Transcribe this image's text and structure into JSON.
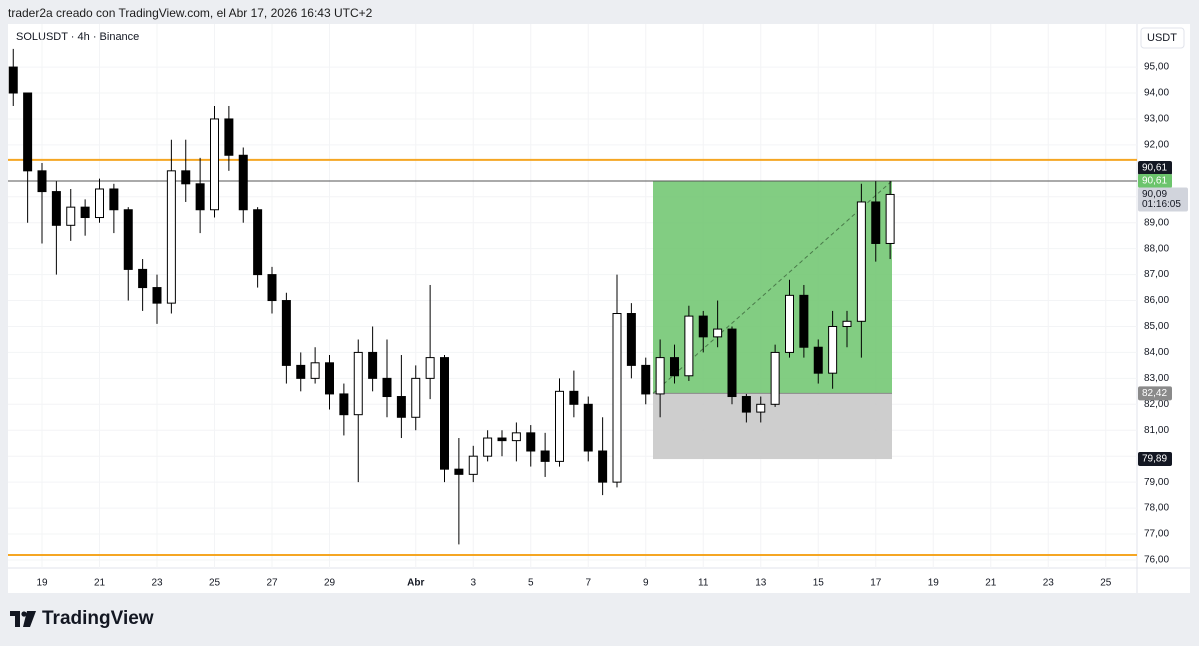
{
  "header": {
    "text": "trader2a creado con TradingView.com, el Abr 17, 2026 16:43 UTC+2"
  },
  "footer": {
    "brand": "TradingView"
  },
  "chart_data": {
    "type": "candlestick",
    "title": "SOLUSDT · 4h · Binance",
    "currency": "USDT",
    "up_color": "#ffffff",
    "down_color": "#000000",
    "outline_color": "#000000",
    "grid": true,
    "categories": [
      null,
      null,
      "19",
      null,
      null,
      null,
      "21",
      null,
      null,
      null,
      "23",
      null,
      null,
      null,
      "25",
      null,
      null,
      null,
      "27",
      null,
      null,
      null,
      "29",
      null,
      null,
      null,
      null,
      null,
      "Abr",
      null,
      null,
      null,
      "3",
      null,
      null,
      null,
      "5",
      null,
      null,
      null,
      "7",
      null,
      null,
      null,
      "9",
      null,
      null,
      null,
      "11",
      null,
      null,
      null,
      "13",
      null,
      null,
      null,
      "15",
      null,
      null,
      null,
      "17",
      null,
      null,
      null,
      "19",
      null,
      null,
      null,
      "21",
      null,
      null,
      null,
      "23",
      null,
      null,
      null,
      "25",
      null,
      null
    ],
    "open": [
      95.0,
      94.0,
      91.0,
      90.2,
      88.9,
      89.6,
      89.2,
      90.3,
      89.5,
      87.2,
      86.5,
      85.9,
      91.0,
      90.5,
      89.5,
      93.0,
      91.6,
      89.5,
      87.0,
      86.0,
      83.5,
      83.0,
      83.6,
      82.4,
      81.6,
      84.0,
      83.0,
      82.3,
      81.5,
      83.0,
      83.8,
      79.5,
      79.3,
      80.0,
      80.7,
      80.6,
      80.9,
      80.2,
      79.8,
      82.5,
      82.0,
      80.2,
      79.0,
      85.5,
      83.5,
      82.4,
      83.8,
      83.1,
      85.4,
      84.6,
      84.9,
      82.3,
      81.7,
      82.0,
      84.0,
      86.2,
      84.2,
      83.2,
      85.0,
      85.2,
      89.8,
      88.2,
      null,
      null,
      null,
      null,
      null,
      null,
      null,
      null,
      null,
      null,
      null,
      null,
      null,
      null,
      null,
      null,
      null
    ],
    "high": [
      95.7,
      94.0,
      91.3,
      90.6,
      90.3,
      89.9,
      90.7,
      90.5,
      89.6,
      87.6,
      87.0,
      92.2,
      92.2,
      91.5,
      93.5,
      93.5,
      91.9,
      89.6,
      87.3,
      86.3,
      84.0,
      84.2,
      83.9,
      82.8,
      84.5,
      85.0,
      84.5,
      83.9,
      83.5,
      86.6,
      83.9,
      80.7,
      80.4,
      81.0,
      81.0,
      81.3,
      81.2,
      80.9,
      83.0,
      83.3,
      82.3,
      81.5,
      87.0,
      85.9,
      83.8,
      84.5,
      84.3,
      85.8,
      85.6,
      86.0,
      85.0,
      82.4,
      82.3,
      84.3,
      86.8,
      86.6,
      84.5,
      85.6,
      85.6,
      90.5,
      90.6,
      90.61,
      null,
      null,
      null,
      null,
      null,
      null,
      null,
      null,
      null,
      null,
      null,
      null,
      null,
      null,
      null,
      null,
      null
    ],
    "low": [
      93.5,
      89.0,
      88.2,
      87.0,
      88.3,
      88.5,
      89.0,
      88.6,
      86.0,
      85.6,
      85.1,
      85.5,
      89.8,
      88.6,
      89.2,
      91.0,
      89.0,
      86.5,
      85.5,
      82.8,
      82.5,
      82.8,
      81.8,
      80.8,
      79.0,
      82.5,
      81.5,
      80.7,
      81.0,
      82.2,
      79.0,
      76.6,
      79.0,
      79.8,
      80.0,
      79.8,
      79.6,
      79.2,
      79.6,
      81.5,
      79.8,
      78.5,
      78.8,
      83.0,
      82.0,
      81.5,
      82.8,
      82.9,
      84.0,
      84.2,
      82.0,
      81.3,
      81.3,
      81.9,
      83.8,
      83.8,
      82.8,
      82.6,
      84.2,
      83.8,
      87.5,
      87.6,
      null,
      null,
      null,
      null,
      null,
      null,
      null,
      null,
      null,
      null,
      null,
      null,
      null,
      null,
      null,
      null,
      null
    ],
    "close": [
      94.0,
      91.0,
      90.2,
      88.9,
      89.6,
      89.2,
      90.3,
      89.5,
      87.2,
      86.5,
      85.9,
      91.0,
      90.5,
      89.5,
      93.0,
      91.6,
      89.5,
      87.0,
      86.0,
      83.5,
      83.0,
      83.6,
      82.4,
      81.6,
      84.0,
      83.0,
      82.3,
      81.5,
      83.0,
      83.8,
      79.5,
      79.3,
      80.0,
      80.7,
      80.6,
      80.9,
      80.2,
      79.8,
      82.5,
      82.0,
      80.2,
      79.0,
      85.5,
      83.5,
      82.4,
      83.8,
      83.1,
      85.4,
      84.6,
      84.9,
      82.3,
      81.7,
      82.0,
      84.0,
      86.2,
      84.2,
      83.2,
      85.0,
      85.2,
      89.8,
      88.2,
      90.09,
      null,
      null,
      null,
      null,
      null,
      null,
      null,
      null,
      null,
      null,
      null,
      null,
      null,
      null,
      null,
      null,
      null
    ],
    "ylim": [
      75.69,
      96.66
    ],
    "yticks": [
      {
        "value": 76,
        "label": "76,00"
      },
      {
        "value": 77,
        "label": "77,00"
      },
      {
        "value": 78,
        "label": "78,00"
      },
      {
        "value": 79,
        "label": "79,00"
      },
      {
        "value": 80,
        "label": "80,00"
      },
      {
        "value": 81,
        "label": "81,00"
      },
      {
        "value": 82,
        "label": "82,00"
      },
      {
        "value": 83,
        "label": "83,00"
      },
      {
        "value": 84,
        "label": "84,00"
      },
      {
        "value": 85,
        "label": "85,00"
      },
      {
        "value": 86,
        "label": "86,00"
      },
      {
        "value": 87,
        "label": "87,00"
      },
      {
        "value": 88,
        "label": "88,00"
      },
      {
        "value": 89,
        "label": "89,00"
      },
      {
        "value": 90,
        "label": "90,00"
      },
      {
        "value": 92,
        "label": "92,00"
      },
      {
        "value": 93,
        "label": "93,00"
      },
      {
        "value": 94,
        "label": "94,00"
      },
      {
        "value": 95,
        "label": "95,00"
      }
    ],
    "levels": [
      {
        "value": 91.42,
        "color": "#f5a623"
      },
      {
        "value": 76.19,
        "color": "#f5a623"
      }
    ],
    "crosshair": {
      "value": 90.61,
      "label": "90,61",
      "color": "#131722"
    },
    "last_price": {
      "value": 90.09,
      "label": "90,09",
      "countdown": "01:16:05",
      "color": "#d1d4dc"
    },
    "position": {
      "target": 90.61,
      "target_label": "90,61",
      "entry": 82.42,
      "entry_label": "82,42",
      "stop": 79.89,
      "stop_label": "79,89",
      "profit_color": "#6cc46c",
      "loss_color": "#c9c9c9",
      "entry_color": "#8a8a8a"
    }
  }
}
